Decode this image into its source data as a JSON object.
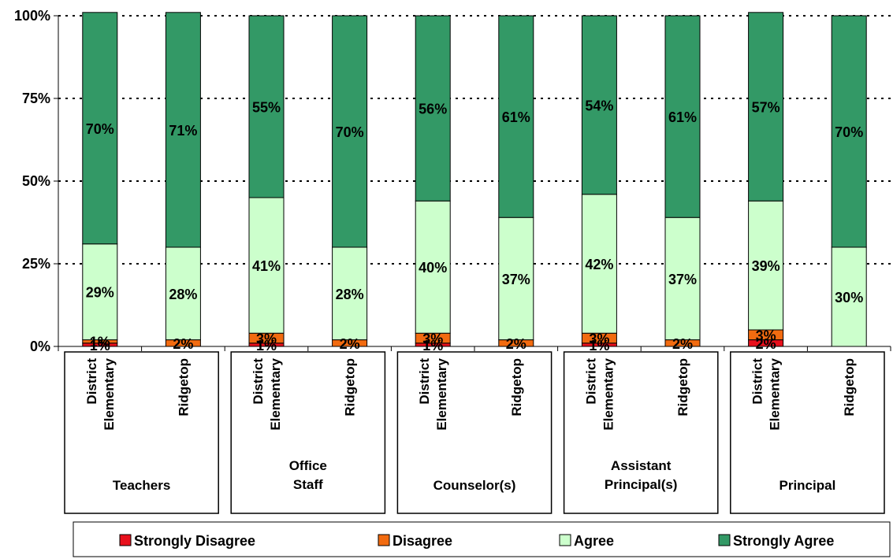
{
  "chart_data": {
    "type": "bar",
    "stacked": "percent",
    "groups": [
      "Teachers",
      "Office Staff",
      "Counselor(s)",
      "Assistant Principal(s)",
      "Principal"
    ],
    "group_label_lines": [
      [
        "Teachers"
      ],
      [
        "Office",
        "Staff"
      ],
      [
        "Counselor(s)"
      ],
      [
        "Assistant",
        "Principal(s)"
      ],
      [
        "Principal"
      ]
    ],
    "categories": [
      "District Elementary",
      "Ridgetop",
      "District Elementary",
      "Ridgetop",
      "District Elementary",
      "Ridgetop",
      "District Elementary",
      "Ridgetop",
      "District Elementary",
      "Ridgetop"
    ],
    "category_label_lines": [
      [
        "District",
        "Elementary"
      ],
      [
        "Ridgetop"
      ]
    ],
    "series": [
      {
        "name": "Strongly Disagree",
        "color": "#e8101c",
        "values": [
          1,
          0,
          1,
          0,
          1,
          0,
          1,
          0,
          2,
          0
        ],
        "labels": [
          "1%",
          "",
          "1%",
          "",
          "1%",
          "",
          "1%",
          "",
          "2%",
          ""
        ]
      },
      {
        "name": "Disagree",
        "color": "#f26b10",
        "values": [
          1,
          2,
          3,
          2,
          3,
          2,
          3,
          2,
          3,
          0
        ],
        "labels": [
          "1%",
          "2%",
          "3%",
          "2%",
          "3%",
          "2%",
          "3%",
          "2%",
          "3%",
          ""
        ]
      },
      {
        "name": "Agree",
        "color": "#ccffcc",
        "values": [
          29,
          28,
          41,
          28,
          40,
          37,
          42,
          37,
          39,
          30
        ],
        "labels": [
          "29%",
          "28%",
          "41%",
          "28%",
          "40%",
          "37%",
          "42%",
          "37%",
          "39%",
          "30%"
        ]
      },
      {
        "name": "Strongly Agree",
        "color": "#339966",
        "values": [
          70,
          71,
          55,
          70,
          56,
          61,
          54,
          61,
          57,
          70
        ],
        "labels": [
          "70%",
          "71%",
          "55%",
          "70%",
          "56%",
          "61%",
          "54%",
          "61%",
          "57%",
          "70%"
        ]
      }
    ],
    "yticks": [
      "0%",
      "25%",
      "50%",
      "75%",
      "100%"
    ],
    "ylim": [
      0,
      100
    ],
    "grid": true,
    "legend_position": "bottom"
  }
}
